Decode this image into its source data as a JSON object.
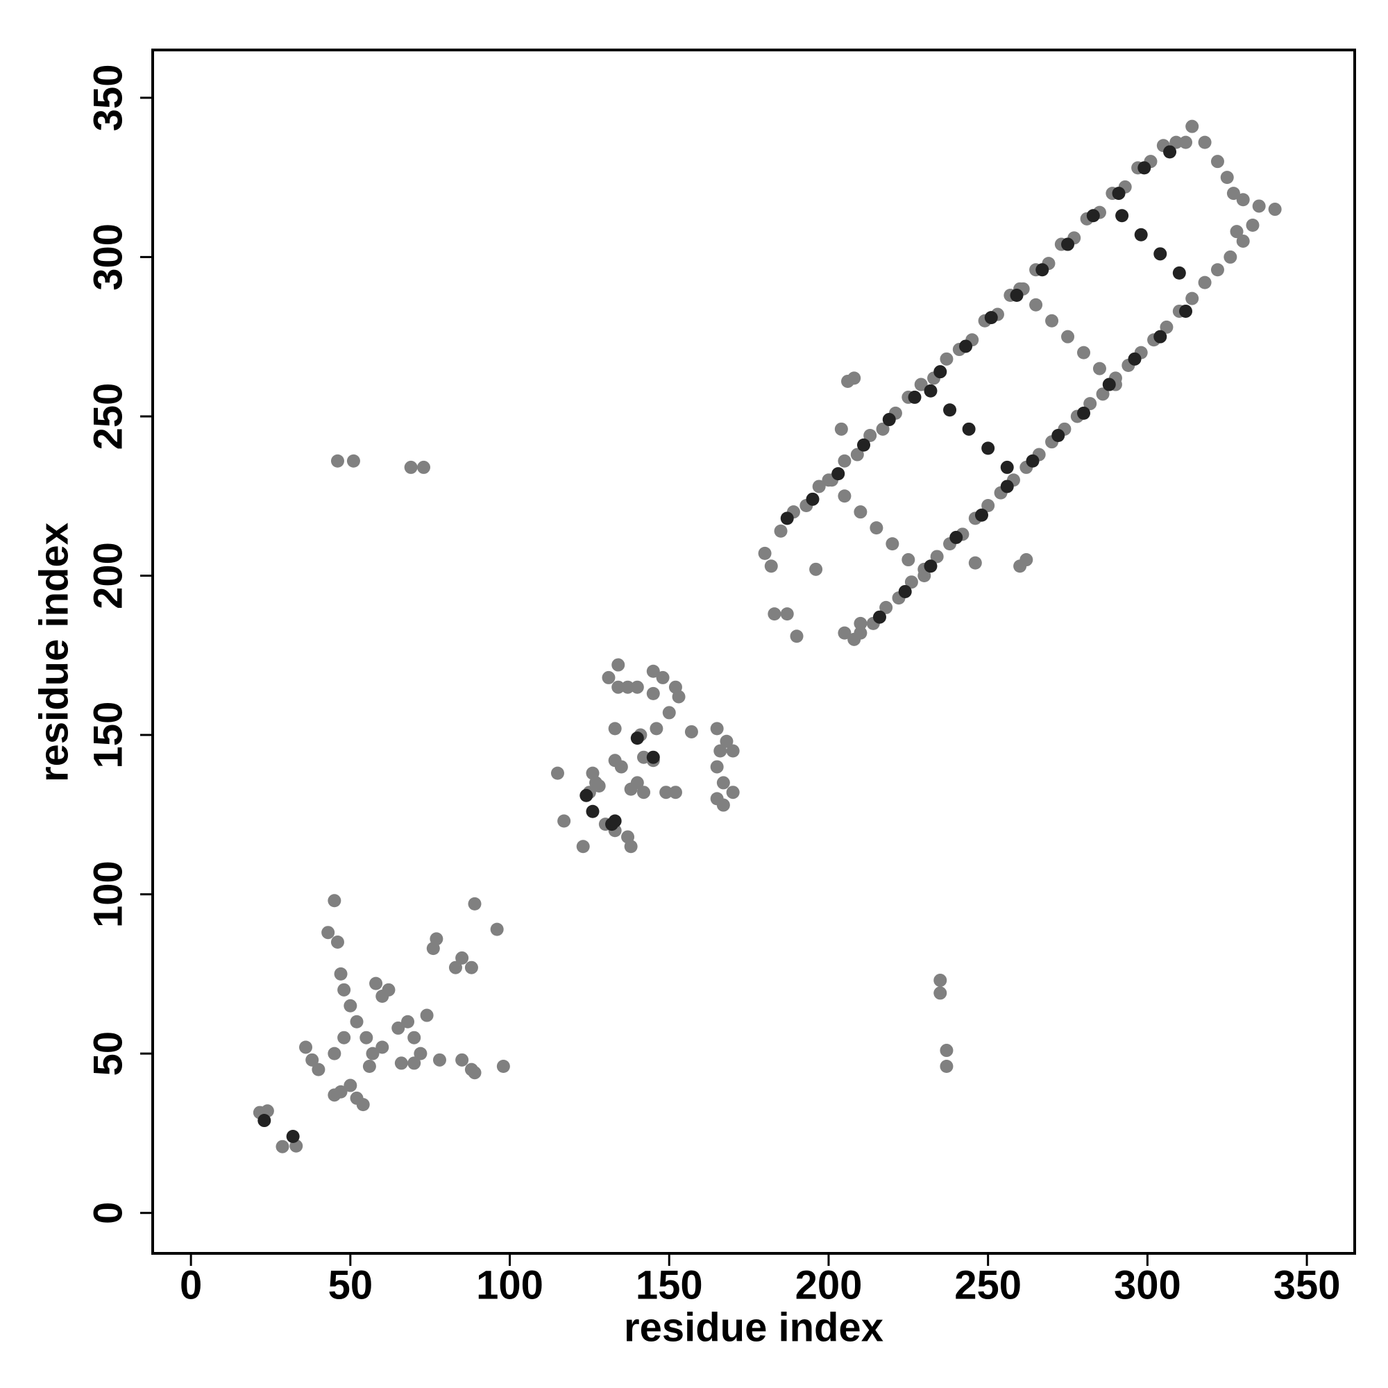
{
  "chart_data": {
    "type": "scatter",
    "xlabel": "residue index",
    "ylabel": "residue index",
    "xlim": [
      -12,
      365
    ],
    "ylim": [
      -12.7,
      365
    ],
    "xticks": [
      0,
      50,
      100,
      150,
      200,
      250,
      300,
      350
    ],
    "yticks": [
      0,
      50,
      100,
      150,
      200,
      250,
      300,
      350
    ],
    "series": [
      {
        "color": "#808080",
        "x": [
          21.6,
          24,
          28.7,
          33,
          36,
          38,
          40,
          45,
          43,
          45,
          46,
          47,
          48,
          50,
          52,
          55,
          57,
          60,
          62,
          58,
          65,
          68,
          70,
          72,
          74,
          76,
          77,
          83,
          85,
          88,
          85,
          88,
          89,
          98,
          96,
          89,
          50,
          52,
          54,
          47,
          48,
          45,
          56,
          60,
          66,
          70,
          78,
          115,
          117,
          123,
          125,
          127,
          130,
          133,
          137,
          138,
          131,
          134,
          134,
          137,
          140,
          145,
          148,
          152,
          153,
          145,
          150,
          141,
          146,
          142,
          145,
          140,
          138,
          142,
          149,
          152,
          133,
          135,
          133,
          157,
          165,
          166,
          168,
          170,
          165,
          167,
          170,
          165,
          167,
          128,
          126,
          46,
          51,
          69,
          73,
          235,
          235,
          237,
          237,
          190,
          187,
          183,
          180,
          182,
          206,
          208,
          204,
          262,
          260,
          246,
          196,
          205,
          208,
          210,
          314,
          312,
          318,
          322,
          325,
          327,
          330,
          335,
          340,
          333,
          328,
          185,
          189,
          193,
          197,
          201,
          205,
          209,
          213,
          217,
          221,
          225,
          229,
          233,
          237,
          241,
          245,
          249,
          253,
          257,
          261,
          265,
          269,
          273,
          277,
          281,
          285,
          289,
          293,
          297,
          301,
          305,
          309,
          210,
          214,
          218,
          222,
          226,
          230,
          234,
          238,
          242,
          246,
          250,
          254,
          258,
          262,
          266,
          270,
          274,
          278,
          282,
          286,
          290,
          294,
          298,
          302,
          306,
          310,
          314,
          318,
          322,
          326,
          330,
          200,
          205,
          210,
          215,
          220,
          225,
          230,
          260,
          265,
          270,
          275,
          280,
          285,
          290
        ],
        "y": [
          31.5,
          32,
          20.8,
          21,
          52,
          48,
          45,
          50,
          88,
          98,
          85,
          75,
          70,
          65,
          60,
          55,
          50,
          68,
          70,
          72,
          58,
          60,
          55,
          50,
          62,
          83,
          86,
          77,
          80,
          77,
          48,
          45,
          44,
          46,
          89,
          97,
          40,
          36,
          34,
          38,
          55,
          37,
          46,
          52,
          47,
          47,
          48,
          138,
          123,
          115,
          132,
          135,
          122,
          120,
          118,
          115,
          168,
          172,
          165,
          165,
          165,
          170,
          168,
          165,
          162,
          163,
          157,
          150,
          152,
          143,
          142,
          135,
          133,
          132,
          132,
          132,
          142,
          140,
          152,
          151,
          152,
          145,
          148,
          145,
          140,
          135,
          132,
          130,
          128,
          134,
          138,
          236,
          236,
          234,
          234,
          73,
          69,
          51,
          46,
          181,
          188,
          188,
          207,
          203,
          261,
          262,
          246,
          205,
          203,
          204,
          202,
          182,
          180,
          185,
          341,
          336,
          336,
          330,
          325,
          320,
          318,
          316,
          315,
          310,
          308,
          214,
          220,
          222,
          228,
          230,
          236,
          238,
          244,
          246,
          251,
          256,
          260,
          262,
          268,
          271,
          274,
          280,
          282,
          288,
          290,
          296,
          298,
          304,
          306,
          312,
          314,
          320,
          322,
          328,
          330,
          335,
          336,
          182,
          185,
          190,
          193,
          198,
          202,
          206,
          210,
          213,
          218,
          222,
          226,
          230,
          234,
          238,
          242,
          246,
          250,
          254,
          257,
          262,
          266,
          270,
          274,
          278,
          283,
          287,
          292,
          296,
          300,
          305,
          230,
          225,
          220,
          215,
          210,
          205,
          200,
          290,
          285,
          280,
          275,
          270,
          265,
          260
        ]
      },
      {
        "color": "#222222",
        "x": [
          187,
          195,
          203,
          211,
          219,
          227,
          235,
          243,
          251,
          259,
          267,
          275,
          283,
          291,
          299,
          307,
          216,
          224,
          232,
          240,
          248,
          256,
          264,
          272,
          280,
          288,
          296,
          304,
          312,
          232,
          238,
          244,
          250,
          256,
          292,
          298,
          304,
          310,
          23,
          32,
          124,
          126,
          132,
          140,
          145,
          133
        ],
        "y": [
          218,
          224,
          232,
          241,
          249,
          256,
          264,
          272,
          281,
          288,
          296,
          304,
          313,
          320,
          328,
          333,
          187,
          195,
          203,
          212,
          219,
          228,
          236,
          244,
          251,
          260,
          268,
          275,
          283,
          258,
          252,
          246,
          240,
          234,
          313,
          307,
          301,
          295,
          29,
          24,
          131,
          126,
          122,
          149,
          143,
          123
        ]
      }
    ]
  }
}
